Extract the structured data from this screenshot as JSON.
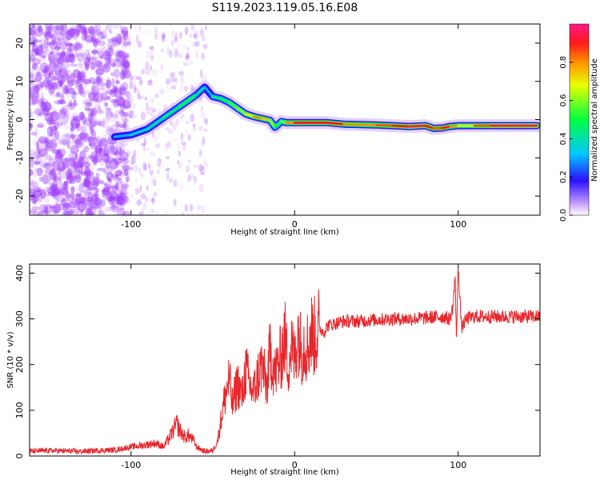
{
  "title": "S119.2023.119.05.16.E08",
  "colors": {
    "snr_line": "#e8262b",
    "spectrogram_speckle": "#a040ff",
    "background": "#ffffff"
  },
  "colorbar": {
    "label": "Normalized spectral amplitude",
    "ticks": [
      "0.0",
      "0.2",
      "0.4",
      "0.6",
      "0.8"
    ],
    "tick_values": [
      0.0,
      0.2,
      0.4,
      0.6,
      0.8
    ],
    "range": [
      0,
      1
    ],
    "colormap": "rainbow-white"
  },
  "chart_data": [
    {
      "type": "heatmap",
      "xlabel": "Height of straight line (km)",
      "ylabel": "Frequency (Hz)",
      "xlim": [
        -162,
        150
      ],
      "ylim": [
        -25,
        25
      ],
      "xticks": [
        -100,
        0,
        100
      ],
      "xtick_labels": [
        "-100",
        "0",
        "100"
      ],
      "yticks": [
        20,
        10,
        0,
        -10,
        -20
      ],
      "ytick_labels": [
        "20",
        "10",
        "0",
        "-10",
        "-20"
      ],
      "ridge": {
        "x": [
          -110,
          -100,
          -90,
          -80,
          -70,
          -60,
          -55,
          -50,
          -45,
          -40,
          -35,
          -30,
          -25,
          -20,
          -15,
          -12,
          -8,
          -5,
          0,
          10,
          20,
          30,
          40,
          50,
          60,
          70,
          80,
          85,
          90,
          95,
          100,
          110,
          120,
          130,
          140,
          148
        ],
        "y": [
          -4.5,
          -4,
          -2.5,
          0.5,
          3.5,
          6.5,
          8.5,
          6,
          5.5,
          4.5,
          3,
          1.5,
          0.8,
          0.3,
          -0.2,
          -2,
          -0.5,
          -0.8,
          -0.8,
          -0.8,
          -0.8,
          -1.2,
          -1.3,
          -1.4,
          -1.6,
          -1.8,
          -1.6,
          -2.3,
          -2.2,
          -1.8,
          -1.6,
          -1.6,
          -1.6,
          -1.6,
          -1.6,
          -1.6
        ],
        "amplitude": [
          0.3,
          0.35,
          0.4,
          0.45,
          0.5,
          0.4,
          0.3,
          0.45,
          0.5,
          0.55,
          0.6,
          0.7,
          0.8,
          0.75,
          0.6,
          0.5,
          0.6,
          0.8,
          0.9,
          0.9,
          0.9,
          0.8,
          0.8,
          0.85,
          0.9,
          0.95,
          0.9,
          0.85,
          0.9,
          0.8,
          0.7,
          0.85,
          0.95,
          0.95,
          0.95,
          0.95
        ]
      }
    },
    {
      "type": "line",
      "xlabel": "Height of straight line (km)",
      "ylabel": "SNR (10 * v/v)",
      "xlim": [
        -162,
        150
      ],
      "ylim": [
        0,
        420
      ],
      "xticks": [
        -100,
        0,
        100
      ],
      "xtick_labels": [
        "-100",
        "0",
        "100"
      ],
      "yticks": [
        0,
        100,
        200,
        300,
        400
      ],
      "ytick_labels": [
        "0",
        "100",
        "200",
        "300",
        "400"
      ],
      "series": [
        {
          "x": [
            -162,
            -150,
            -140,
            -130,
            -120,
            -110,
            -100,
            -95,
            -90,
            -85,
            -80,
            -75,
            -72,
            -70,
            -67,
            -65,
            -62,
            -60,
            -55,
            -50,
            -47,
            -45,
            -43,
            -40,
            -38,
            -35,
            -32,
            -30,
            -27,
            -25,
            -22,
            -20,
            -17,
            -15,
            -12,
            -10,
            -8,
            -6,
            -4,
            -2,
            0,
            2,
            4,
            6,
            8,
            10,
            12,
            15,
            18,
            20,
            25,
            30,
            40,
            50,
            60,
            70,
            80,
            90,
            95,
            97,
            98,
            99,
            100,
            102,
            105,
            110,
            120,
            130,
            140,
            150
          ],
          "y": [
            10,
            12,
            11,
            10,
            12,
            13,
            20,
            22,
            25,
            28,
            20,
            50,
            70,
            55,
            40,
            45,
            35,
            20,
            10,
            12,
            35,
            80,
            120,
            170,
            110,
            160,
            130,
            190,
            150,
            140,
            180,
            200,
            150,
            230,
            180,
            200,
            220,
            260,
            200,
            240,
            210,
            280,
            230,
            250,
            240,
            270,
            260,
            280,
            270,
            285,
            290,
            295,
            295,
            298,
            300,
            300,
            302,
            305,
            300,
            330,
            395,
            260,
            420,
            280,
            300,
            305,
            305,
            305,
            305,
            305
          ]
        }
      ]
    }
  ]
}
